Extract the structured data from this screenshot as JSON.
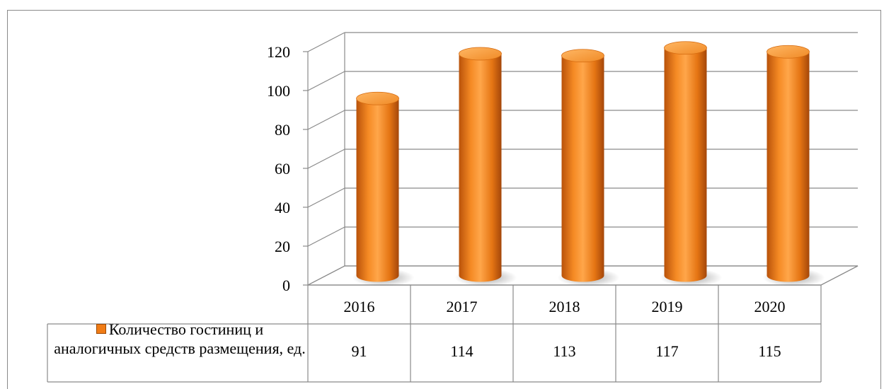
{
  "chart_data": {
    "type": "bar",
    "style": "3d-cylinder",
    "categories": [
      "2016",
      "2017",
      "2018",
      "2019",
      "2020"
    ],
    "series": [
      {
        "name": "Количество гостиниц и аналогичных средств размещения, ед.",
        "values": [
          91,
          114,
          113,
          117,
          115
        ],
        "color": "#f07c16"
      }
    ],
    "y_ticks": [
      "0",
      "20",
      "40",
      "60",
      "80",
      "100",
      "120"
    ],
    "ylim": [
      0,
      120
    ],
    "grid": true,
    "data_table": true,
    "legend": "data-table-left"
  }
}
